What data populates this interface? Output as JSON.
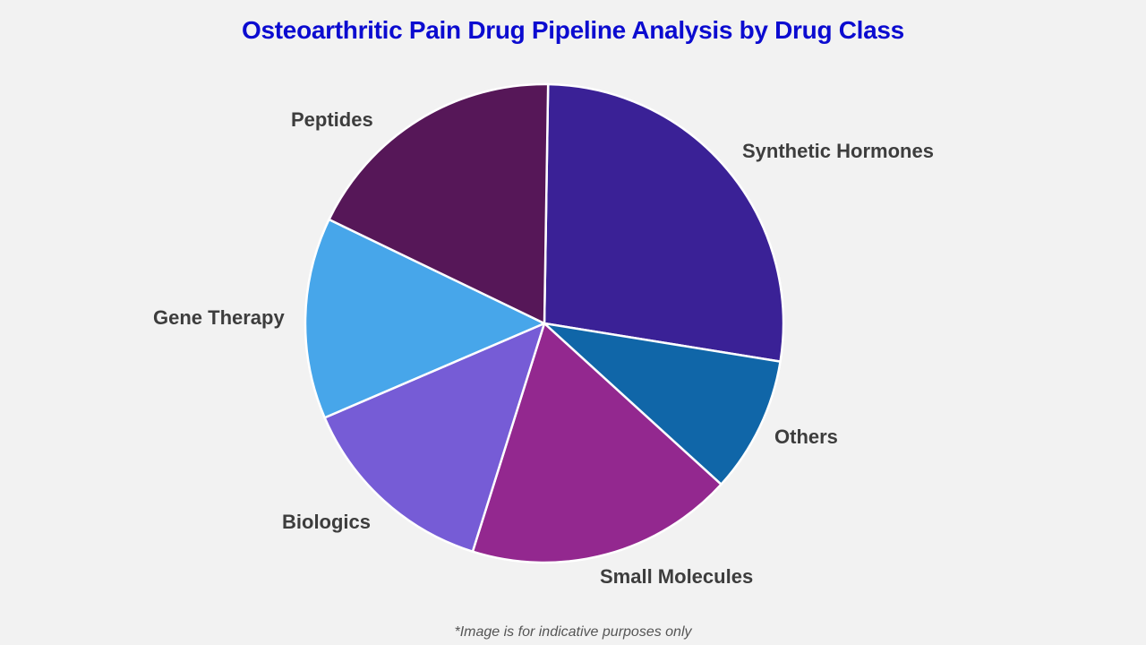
{
  "title": "Osteoarthritic Pain Drug Pipeline Analysis by Drug Class",
  "footnote": "*Image is for indicative purposes only",
  "chart_data": {
    "type": "pie",
    "title": "Osteoarthritic Pain Drug Pipeline Analysis by Drug Class",
    "start_angle_deg": 0.9,
    "direction": "clockwise",
    "categories": [
      "Synthetic Hormones",
      "Others",
      "Small Molecules",
      "Biologics",
      "Gene Therapy",
      "Peptides"
    ],
    "values": [
      27.3,
      9.2,
      18.1,
      13.7,
      13.6,
      18.1
    ],
    "unit": "% (estimated from slice angles)",
    "colors": [
      "#3a2196",
      "#1066a8",
      "#93288f",
      "#765cd6",
      "#47a6ea",
      "#561758"
    ],
    "legend": "none (direct labels)"
  },
  "labels": {
    "synthetic_hormones": "Synthetic Hormones",
    "others": "Others",
    "small_molecules": "Small Molecules",
    "biologics": "Biologics",
    "gene_therapy": "Gene Therapy",
    "peptides": "Peptides"
  }
}
